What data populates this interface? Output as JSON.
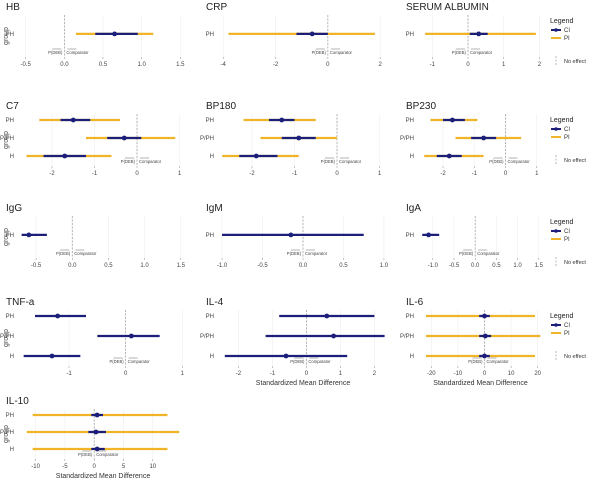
{
  "colors": {
    "ci": "#1b1f7a",
    "pi": "#f0b428",
    "grid": "#eeeeee",
    "zero": "#999999"
  },
  "legend": {
    "title": "Legend",
    "ci_label": "CI",
    "pi_label": "PI",
    "no_effect_label": "No effect"
  },
  "annotation": {
    "favors_left": "P(DEB)",
    "favors_right": "Comparator"
  },
  "group_axis_label": "group",
  "x_axis_label": "Standardized Mean Difference",
  "chart_data": [
    {
      "type": "forest",
      "title": "HB",
      "xlim": [
        -0.6,
        1.6
      ],
      "ticks": [
        -0.5,
        0.0,
        0.5,
        1.0,
        1.5
      ],
      "tick_labels": [
        "-0.5",
        "0.0",
        "0.5",
        "1.0",
        "1.5"
      ],
      "rows": [
        {
          "group": "PH",
          "est": 0.65,
          "ci": [
            0.4,
            0.95
          ],
          "pi": [
            0.15,
            1.15
          ]
        }
      ]
    },
    {
      "type": "forest",
      "title": "CRP",
      "xlim": [
        -4.2,
        2.3
      ],
      "ticks": [
        -4,
        -2,
        0,
        2
      ],
      "tick_labels": [
        "-4",
        "-2",
        "0",
        "2"
      ],
      "rows": [
        {
          "group": "PH",
          "est": -0.6,
          "ci": [
            -1.2,
            0.0
          ],
          "pi": [
            -3.8,
            1.8
          ]
        }
      ]
    },
    {
      "type": "forest",
      "title": "SERUM ALBUMIN",
      "xlim": [
        -1.4,
        2.1
      ],
      "ticks": [
        -1,
        0,
        1,
        2
      ],
      "tick_labels": [
        "-1",
        "0",
        "1",
        "2"
      ],
      "rows": [
        {
          "group": "PH",
          "est": 0.3,
          "ci": [
            0.05,
            0.55
          ],
          "pi": [
            -1.2,
            1.9
          ]
        }
      ]
    },
    {
      "type": "forest",
      "title": "C7",
      "xlim": [
        -2.8,
        1.2
      ],
      "ticks": [
        -2,
        -1,
        0,
        1
      ],
      "tick_labels": [
        "-2",
        "-1",
        "0",
        "1"
      ],
      "rows": [
        {
          "group": "PH",
          "est": -1.5,
          "ci": [
            -1.8,
            -1.1
          ],
          "pi": [
            -2.3,
            -0.4
          ]
        },
        {
          "group": "P/PH",
          "est": -0.3,
          "ci": [
            -0.7,
            0.1
          ],
          "pi": [
            -1.2,
            0.9
          ]
        },
        {
          "group": "H",
          "est": -1.7,
          "ci": [
            -2.2,
            -1.2
          ],
          "pi": [
            -2.6,
            -0.6
          ]
        }
      ]
    },
    {
      "type": "forest",
      "title": "BP180",
      "xlim": [
        -2.8,
        1.2
      ],
      "ticks": [
        -2,
        -1,
        0,
        1
      ],
      "tick_labels": [
        "-2",
        "-1",
        "0",
        "1"
      ],
      "rows": [
        {
          "group": "PH",
          "est": -1.3,
          "ci": [
            -1.6,
            -1.0
          ],
          "pi": [
            -2.2,
            -0.5
          ]
        },
        {
          "group": "P/PH",
          "est": -0.9,
          "ci": [
            -1.3,
            -0.5
          ],
          "pi": [
            -1.8,
            0.0
          ]
        },
        {
          "group": "H",
          "est": -1.9,
          "ci": [
            -2.3,
            -1.4
          ],
          "pi": [
            -2.7,
            -0.9
          ]
        }
      ]
    },
    {
      "type": "forest",
      "title": "BP230",
      "xlim": [
        -2.8,
        1.2
      ],
      "ticks": [
        -2,
        -1,
        0,
        1
      ],
      "tick_labels": [
        "-2",
        "-1",
        "0",
        "1"
      ],
      "rows": [
        {
          "group": "PH",
          "est": -1.7,
          "ci": [
            -2.0,
            -1.3
          ],
          "pi": [
            -2.4,
            -0.9
          ]
        },
        {
          "group": "P/PH",
          "est": -0.7,
          "ci": [
            -1.1,
            -0.3
          ],
          "pi": [
            -1.6,
            0.5
          ]
        },
        {
          "group": "H",
          "est": -1.8,
          "ci": [
            -2.2,
            -1.4
          ],
          "pi": [
            -2.6,
            -0.7
          ]
        }
      ]
    },
    {
      "type": "forest",
      "title": "IgG",
      "xlim": [
        -0.75,
        1.6
      ],
      "ticks": [
        -0.5,
        0.0,
        0.5,
        1.0,
        1.5
      ],
      "tick_labels": [
        "-0.5",
        "0.0",
        "0.5",
        "1.0",
        "1.5"
      ],
      "rows": [
        {
          "group": "PH",
          "est": -0.6,
          "ci": [
            -0.7,
            -0.35
          ],
          "pi": null
        }
      ]
    },
    {
      "type": "forest",
      "title": "IgM",
      "xlim": [
        -1.05,
        1.05
      ],
      "ticks": [
        -1.0,
        -0.5,
        0.0,
        0.5,
        1.0
      ],
      "tick_labels": [
        "-1.0",
        "-0.5",
        "0.0",
        "0.5",
        "1.0"
      ],
      "rows": [
        {
          "group": "PH",
          "est": -0.15,
          "ci": [
            -1.0,
            0.75
          ],
          "pi": null
        }
      ]
    },
    {
      "type": "forest",
      "title": "IgA",
      "xlim": [
        -1.35,
        1.6
      ],
      "ticks": [
        -1.0,
        -0.5,
        0.0,
        0.5,
        1.0,
        1.5
      ],
      "tick_labels": [
        "-1.0",
        "-0.5",
        "0.0",
        "0.5",
        "1.0",
        "1.5"
      ],
      "rows": [
        {
          "group": "PH",
          "est": -1.1,
          "ci": [
            -1.25,
            -0.85
          ],
          "pi": null
        }
      ]
    },
    {
      "type": "forest",
      "title": "TNF-a",
      "xlim": [
        -1.9,
        1.1
      ],
      "ticks": [
        -1,
        0,
        1
      ],
      "tick_labels": [
        "-1",
        "0",
        "1"
      ],
      "rows": [
        {
          "group": "PH",
          "est": -1.2,
          "ci": [
            -1.6,
            -0.7
          ],
          "pi": null
        },
        {
          "group": "P/PH",
          "est": 0.1,
          "ci": [
            -0.5,
            0.6
          ],
          "pi": null
        },
        {
          "group": "H",
          "est": -1.3,
          "ci": [
            -1.8,
            -0.8
          ],
          "pi": null
        }
      ]
    },
    {
      "type": "forest",
      "title": "IL-4",
      "xlim": [
        -2.6,
        2.4
      ],
      "ticks": [
        -2,
        -1,
        0,
        1,
        2
      ],
      "tick_labels": [
        "-2",
        "-1",
        "0",
        "1",
        "2"
      ],
      "rows": [
        {
          "group": "PH",
          "est": 0.6,
          "ci": [
            -0.8,
            2.0
          ],
          "pi": null
        },
        {
          "group": "P/PH",
          "est": 0.8,
          "ci": [
            -1.2,
            2.3
          ],
          "pi": null
        },
        {
          "group": "H",
          "est": -0.6,
          "ci": [
            -2.4,
            1.2
          ],
          "pi": null
        }
      ]
    },
    {
      "type": "forest",
      "title": "IL-6",
      "xlim": [
        -25,
        22
      ],
      "ticks": [
        -20,
        -10,
        0,
        10,
        20
      ],
      "tick_labels": [
        "-20",
        "-10",
        "0",
        "10",
        "20"
      ],
      "rows": [
        {
          "group": "PH",
          "est": 0.0,
          "ci": [
            -2.0,
            2.0
          ],
          "pi": [
            -22.0,
            19.0
          ]
        },
        {
          "group": "P/PH",
          "est": 0.3,
          "ci": [
            -2.0,
            2.5
          ],
          "pi": [
            -22.0,
            21.0
          ]
        },
        {
          "group": "H",
          "est": 0.0,
          "ci": [
            -2.0,
            2.0
          ],
          "pi": [
            -22.0,
            19.0
          ]
        }
      ]
    },
    {
      "type": "forest",
      "title": "IL-10",
      "xlim": [
        -13,
        16
      ],
      "ticks": [
        -10,
        -5,
        0,
        5,
        10
      ],
      "tick_labels": [
        "-10",
        "-5",
        "0",
        "5",
        "10"
      ],
      "rows": [
        {
          "group": "PH",
          "est": 0.5,
          "ci": [
            -0.5,
            1.5
          ],
          "pi": [
            -10.5,
            12.5
          ]
        },
        {
          "group": "P/PH",
          "est": 0.3,
          "ci": [
            -1.0,
            2.0
          ],
          "pi": [
            -11.5,
            14.5
          ]
        },
        {
          "group": "H",
          "est": 0.5,
          "ci": [
            -0.5,
            1.8
          ],
          "pi": [
            -10.5,
            12.5
          ]
        }
      ]
    }
  ]
}
